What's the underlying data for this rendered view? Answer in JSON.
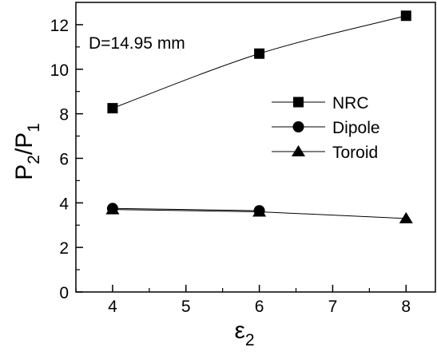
{
  "chart_data": {
    "type": "line",
    "annotation": "D=14.95 mm",
    "xlabel": {
      "main": "ε",
      "sub": "2"
    },
    "ylabel": {
      "p1": "P",
      "s1": "2",
      "slash": "/",
      "p2": "P",
      "s2": "1"
    },
    "xlim": [
      3.5,
      8.4
    ],
    "ylim": [
      0,
      13
    ],
    "xticks": [
      4,
      5,
      6,
      7,
      8
    ],
    "yticks": [
      0,
      2,
      4,
      6,
      8,
      10,
      12
    ],
    "grid": false,
    "legend_position": "center-right",
    "series": [
      {
        "name": "NRC",
        "marker": "square",
        "x": [
          4,
          6,
          8
        ],
        "y": [
          8.25,
          10.7,
          12.4
        ]
      },
      {
        "name": "Dipole",
        "marker": "circle",
        "x": [
          4,
          6,
          8
        ],
        "y": [
          3.75,
          3.65,
          null
        ]
      },
      {
        "name": "Toroid",
        "marker": "triangle",
        "x": [
          4,
          6,
          8
        ],
        "y": [
          3.7,
          3.6,
          3.3
        ]
      }
    ]
  }
}
